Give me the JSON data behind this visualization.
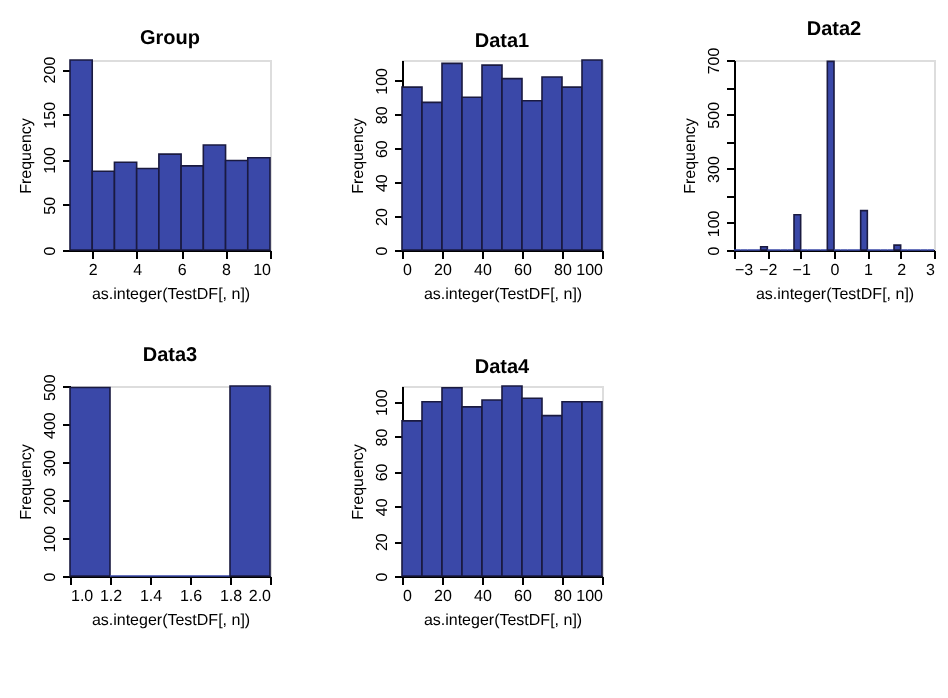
{
  "chart_data": [
    {
      "type": "histogram",
      "title": "Group",
      "xlabel": "as.integer(TestDF[, n])",
      "ylabel": "Frequency",
      "color": "#3a48a8",
      "grid": false,
      "bins": [
        1,
        2,
        3,
        4,
        5,
        6,
        7,
        8,
        9,
        10
      ],
      "values": [
        210,
        87,
        97,
        90,
        106,
        93,
        116,
        99,
        102
      ],
      "xlim": [
        1,
        10
      ],
      "xticks": [
        2,
        4,
        6,
        8,
        10
      ],
      "ylim": [
        0,
        210
      ],
      "yticks": [
        0,
        50,
        100,
        150,
        200
      ]
    },
    {
      "type": "histogram",
      "title": "Data1",
      "xlabel": "as.integer(TestDF[, n])",
      "ylabel": "Frequency",
      "color": "#3a48a8",
      "grid": false,
      "bins": [
        0,
        10,
        20,
        30,
        40,
        50,
        60,
        70,
        80,
        90,
        100
      ],
      "values": [
        96,
        87,
        110,
        90,
        109,
        101,
        88,
        102,
        96,
        112
      ],
      "xlim": [
        0,
        100
      ],
      "xticks": [
        0,
        20,
        40,
        60,
        80,
        100
      ],
      "ylim": [
        0,
        112
      ],
      "yticks": [
        0,
        20,
        40,
        60,
        80,
        100
      ]
    },
    {
      "type": "histogram",
      "title": "Data2",
      "xlabel": "as.integer(TestDF[, n])",
      "ylabel": "Frequency",
      "color": "#3a48a8",
      "grid": false,
      "bins": [
        -3,
        -2.8,
        -2.6,
        -2.4,
        -2.2,
        -2,
        -1.8,
        -1.6,
        -1.4,
        -1.2,
        -1,
        -0.8,
        -0.6,
        -0.4,
        -0.2,
        0,
        0.2,
        0.4,
        0.6,
        0.8,
        1,
        1.2,
        1.4,
        1.6,
        1.8,
        2,
        2.2,
        2.4,
        2.6,
        2.8,
        3
      ],
      "values": [
        0,
        0,
        0,
        0,
        12,
        0,
        0,
        0,
        0,
        130,
        0,
        0,
        0,
        0,
        695,
        0,
        0,
        0,
        0,
        145,
        0,
        0,
        0,
        0,
        18,
        0,
        0,
        0,
        0,
        0
      ],
      "xlim": [
        -3,
        3
      ],
      "xticks": [
        -3,
        -2,
        -1,
        0,
        1,
        2,
        3
      ],
      "ylim": [
        0,
        700
      ],
      "yticks": [
        0,
        100,
        {
          "value": 200,
          "label": null
        },
        300,
        {
          "value": 400,
          "label": null
        },
        500,
        {
          "value": 600,
          "label": null
        },
        700
      ]
    },
    {
      "type": "histogram",
      "title": "Data3",
      "xlabel": "as.integer(TestDF[, n])",
      "ylabel": "Frequency",
      "color": "#3a48a8",
      "grid": false,
      "bins": [
        1.0,
        1.2,
        1.4,
        1.6,
        1.8,
        2.0
      ],
      "values": [
        498,
        0,
        0,
        0,
        502
      ],
      "xlim": [
        1,
        2
      ],
      "xticks": [
        {
          "value": 1,
          "label": "1.0"
        },
        1.2,
        1.4,
        1.6,
        1.8,
        {
          "value": 2,
          "label": "2.0"
        }
      ],
      "ylim": [
        0,
        502
      ],
      "yticks": [
        0,
        100,
        200,
        300,
        400,
        500
      ]
    },
    {
      "type": "histogram",
      "title": "Data4",
      "xlabel": "as.integer(TestDF[, n])",
      "ylabel": "Frequency",
      "color": "#3a48a8",
      "grid": false,
      "bins": [
        0,
        10,
        20,
        30,
        40,
        50,
        60,
        70,
        80,
        90,
        100
      ],
      "values": [
        89,
        100,
        108,
        97,
        101,
        109,
        102,
        92,
        100,
        100
      ],
      "xlim": [
        0,
        100
      ],
      "xticks": [
        0,
        20,
        40,
        60,
        80,
        100
      ],
      "ylim": [
        0,
        109
      ],
      "yticks": [
        0,
        20,
        40,
        60,
        80,
        100
      ]
    }
  ]
}
